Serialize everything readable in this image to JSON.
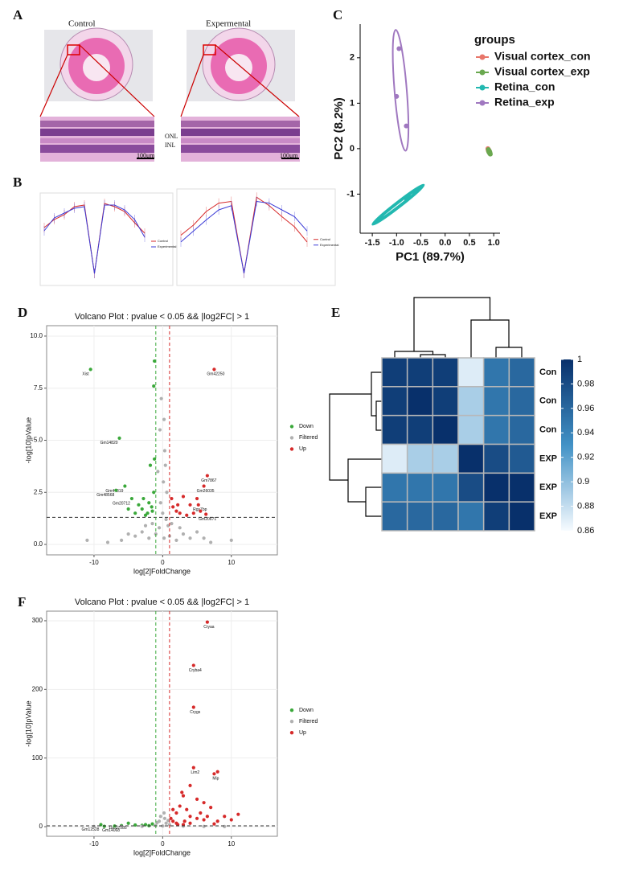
{
  "panel_labels": [
    "A",
    "B",
    "C",
    "D",
    "E",
    "F"
  ],
  "histology": {
    "control": "Control",
    "experimental": "Expermental",
    "onl": "ONL",
    "inl": "INL",
    "scale_left": "100μm",
    "scale_right": "100μm"
  },
  "chart_data": [
    {
      "type": "line",
      "x": [
        1,
        2,
        3,
        4,
        5,
        6,
        7,
        8,
        9,
        10,
        11
      ],
      "xlim": [
        1,
        11
      ],
      "ylim": [
        0,
        1
      ],
      "series": [
        {
          "name": "Control",
          "color": "#d62a2a",
          "values": [
            0.62,
            0.72,
            0.78,
            0.88,
            0.9,
            0.05,
            0.92,
            0.88,
            0.82,
            0.68,
            0.55
          ]
        },
        {
          "name": "Experimental",
          "color": "#3b3bd6",
          "values": [
            0.58,
            0.74,
            0.8,
            0.86,
            0.88,
            0.05,
            0.9,
            0.9,
            0.84,
            0.72,
            0.5
          ]
        }
      ]
    },
    {
      "type": "line",
      "x": [
        1,
        2,
        3,
        4,
        5,
        6,
        7,
        8,
        9,
        10,
        11
      ],
      "xlim": [
        1,
        11
      ],
      "ylim": [
        0,
        1
      ],
      "series": [
        {
          "name": "Control",
          "color": "#d62a2a",
          "values": [
            0.5,
            0.62,
            0.78,
            0.88,
            0.9,
            0.05,
            0.95,
            0.85,
            0.72,
            0.6,
            0.42
          ]
        },
        {
          "name": "Experimental",
          "color": "#3b3bd6",
          "values": [
            0.42,
            0.55,
            0.68,
            0.8,
            0.85,
            0.05,
            0.9,
            0.88,
            0.8,
            0.72,
            0.55
          ]
        }
      ]
    },
    {
      "type": "scatter",
      "x_label": "PC1 (89.7%)",
      "y_label": "PC2 (8.2%)",
      "legend_title": "groups",
      "xlim": [
        -1.75,
        1.13
      ],
      "ylim": [
        -1.86,
        2.74
      ],
      "xticks": [
        -1.5,
        {
          "value": -1,
          "label": "-1.0"
        },
        -0.5,
        {
          "value": 0,
          "label": "0.0"
        },
        0.5,
        {
          "value": 1,
          "label": "1.0"
        }
      ],
      "yticks": [
        -1,
        0,
        1,
        2
      ],
      "series": [
        {
          "name": "Visual cortex_con",
          "color": "#e8766a",
          "x": [
            0.9,
            0.92,
            0.88
          ],
          "y": [
            -0.05,
            -0.1,
            0.0
          ]
        },
        {
          "name": "Visual cortex_exp",
          "color": "#6aa84f",
          "x": [
            0.91,
            0.89,
            0.93
          ],
          "y": [
            -0.08,
            -0.02,
            -0.12
          ]
        },
        {
          "name": "Retina_con",
          "color": "#22b8b0",
          "x": [
            -1.35,
            -0.8,
            -0.75
          ],
          "y": [
            -1.55,
            -1.1,
            -1.05
          ]
        },
        {
          "name": "Retina_exp",
          "color": "#a078c0",
          "x": [
            -0.95,
            -1.0,
            -0.8
          ],
          "y": [
            2.2,
            1.15,
            0.5
          ]
        }
      ]
    },
    {
      "type": "volcano",
      "title": "Volcano Plot : pvalue < 0.05 && |log2FC| > 1",
      "x_label": "log[2]FoldChange",
      "y_label": "-log[10]pValue",
      "xlim": [
        -16.9,
        16.7
      ],
      "ylim": [
        -0.5,
        10.5
      ],
      "xticks": [
        -10,
        0,
        10
      ],
      "yticks": [
        {
          "value": 0,
          "label": "0.0"
        },
        2.5,
        {
          "value": 5,
          "label": "5.0"
        },
        7.5,
        {
          "value": 10,
          "label": "10.0"
        }
      ],
      "thresholds": {
        "y": 1.301,
        "x": [
          -1,
          1
        ]
      },
      "series": [
        {
          "name": "Down",
          "color": "#3aa83a",
          "x": [
            -10.5,
            -1.2,
            -1.3,
            -6.3,
            -5.5,
            -6.8,
            -4.5,
            -2,
            -3,
            -4,
            -2.5,
            -1.5,
            -1.8,
            -1.2,
            -1.3,
            -3.5,
            -2.2,
            -1.6,
            -5,
            -2.8
          ],
          "y": [
            8.4,
            8.8,
            7.6,
            5.1,
            2.8,
            2.6,
            2.2,
            2.0,
            1.7,
            1.5,
            1.4,
            1.6,
            3.8,
            4.1,
            2.5,
            1.9,
            1.5,
            1.8,
            1.7,
            2.2
          ],
          "labels": [
            "Xist",
            null,
            null,
            "Gm14820",
            "Gm44819",
            "Gm48568",
            "Gm20712",
            null,
            null,
            null,
            null,
            null,
            null,
            null,
            null,
            null,
            null,
            null,
            null,
            null
          ]
        },
        {
          "name": "Filtered",
          "color": "#b0b0b0",
          "x": [
            0.2,
            -0.5,
            0.5,
            -0.3,
            0.1,
            0.3,
            0.2,
            -0.4,
            0.6,
            -1,
            1,
            -2,
            2,
            -3,
            3,
            -4,
            4,
            -6,
            6,
            -8,
            7,
            -1.5,
            1.3,
            0,
            -0.7,
            0.4,
            -0.2,
            0.8,
            -2.5,
            2.5,
            -11,
            10,
            5,
            -5
          ],
          "y": [
            0.3,
            0.8,
            1.2,
            2,
            3,
            4.5,
            6,
            5.5,
            2.5,
            0.5,
            0.4,
            0.3,
            0.2,
            0.6,
            0.5,
            0.4,
            0.3,
            0.2,
            0.3,
            0.1,
            0.1,
            1.0,
            1.0,
            1.5,
            3.5,
            3.8,
            7.0,
            0.9,
            0.9,
            0.8,
            0.2,
            0.2,
            0.6,
            0.5
          ]
        },
        {
          "name": "Up",
          "color": "#d62a2a",
          "x": [
            7.5,
            6.5,
            6,
            5,
            3,
            4,
            5.2,
            5.5,
            2,
            1.5,
            2.5,
            3.5,
            4.5,
            1.3,
            2.2,
            6.3
          ],
          "y": [
            8.4,
            3.3,
            2.8,
            2.2,
            2.3,
            1.9,
            1.9,
            1.6,
            1.6,
            1.8,
            1.5,
            1.4,
            1.5,
            2.2,
            1.9,
            1.45
          ],
          "labels": [
            "Gm42250",
            "Gm7867",
            "Gm26035",
            null,
            null,
            null,
            "Rgs7bp",
            null,
            null,
            null,
            null,
            null,
            null,
            null,
            null,
            "Gm20671"
          ]
        }
      ]
    },
    {
      "type": "heatmap",
      "rows": [
        "Con",
        "Con",
        "Con",
        "EXP",
        "EXP",
        "EXP"
      ],
      "values": [
        [
          0.99,
          0.99,
          0.99,
          0.87,
          0.95,
          0.96
        ],
        [
          0.99,
          1,
          0.99,
          0.89,
          0.95,
          0.96
        ],
        [
          0.99,
          0.99,
          1,
          0.89,
          0.95,
          0.96
        ],
        [
          0.87,
          0.89,
          0.89,
          1,
          0.98,
          0.97
        ],
        [
          0.95,
          0.95,
          0.95,
          0.98,
          1,
          1
        ],
        [
          0.96,
          0.96,
          0.96,
          0.95,
          0.99,
          1
        ]
      ],
      "clim": [
        0.86,
        1
      ],
      "colors": [
        "#f7fbff",
        "#4292c6",
        "#08306b"
      ],
      "cticks": [
        0.86,
        0.88,
        0.9,
        0.92,
        0.94,
        0.96,
        0.98,
        1
      ]
    },
    {
      "type": "volcano",
      "title": "Volcano Plot : pvalue < 0.05 && |log2FC| > 1",
      "x_label": "log[2]FoldChange",
      "y_label": "-log[10]pValue",
      "xlim": [
        -16.9,
        16.7
      ],
      "ylim": [
        -14,
        314
      ],
      "xticks": [
        -10,
        0,
        10
      ],
      "yticks": [
        0,
        100,
        200,
        300
      ],
      "thresholds": {
        "y": 1.301,
        "x": [
          -1,
          1
        ]
      },
      "series": [
        {
          "name": "Down",
          "color": "#3aa83a",
          "x": [
            -9,
            -5,
            -2.5,
            -3,
            -1.5,
            -4,
            -7,
            -2,
            -6,
            -8.5
          ],
          "y": [
            3,
            5,
            3,
            2,
            4,
            2.5,
            1,
            1.5,
            1.5,
            0.5
          ],
          "labels": [
            "Gm12528",
            "Gm37985",
            null,
            null,
            null,
            null,
            null,
            null,
            "Gm14068",
            null
          ]
        },
        {
          "name": "Filtered",
          "color": "#b0b0b0",
          "x": [
            0,
            0.5,
            -0.5,
            0.3,
            -1,
            1,
            -3,
            3,
            -6,
            6,
            0.2,
            -0.3,
            -0.8,
            0.8,
            -10,
            9
          ],
          "y": [
            1,
            5,
            8,
            12,
            2,
            3,
            0.5,
            0.8,
            0.3,
            0.4,
            20,
            15,
            6,
            9,
            0.2,
            0.2
          ]
        },
        {
          "name": "Up",
          "color": "#d62a2a",
          "x": [
            6.5,
            4.5,
            4.5,
            4.5,
            7.5,
            8,
            4,
            3,
            5,
            6,
            2.5,
            3.5,
            7,
            2,
            4,
            5,
            6,
            8,
            10,
            1.5,
            2,
            3,
            4,
            11,
            9,
            1.2,
            1.5,
            2.8,
            5.5,
            6.5,
            3.2,
            2.2,
            7.5
          ],
          "y": [
            298,
            235,
            174,
            86,
            77,
            80,
            60,
            45,
            40,
            35,
            30,
            25,
            28,
            20,
            15,
            12,
            10,
            8,
            10,
            8,
            5,
            3,
            5,
            18,
            15,
            12,
            25,
            50,
            20,
            15,
            8,
            3,
            4
          ],
          "labels": [
            "Cryaa",
            "Cryba4",
            "Crygs",
            "Lim2",
            "Mip",
            null,
            null,
            null,
            null,
            null,
            null,
            null,
            null,
            null,
            null,
            null,
            null,
            null,
            null,
            null,
            null,
            null,
            null,
            null,
            null,
            null,
            null,
            null,
            null,
            null,
            null,
            null,
            null
          ]
        }
      ]
    }
  ]
}
